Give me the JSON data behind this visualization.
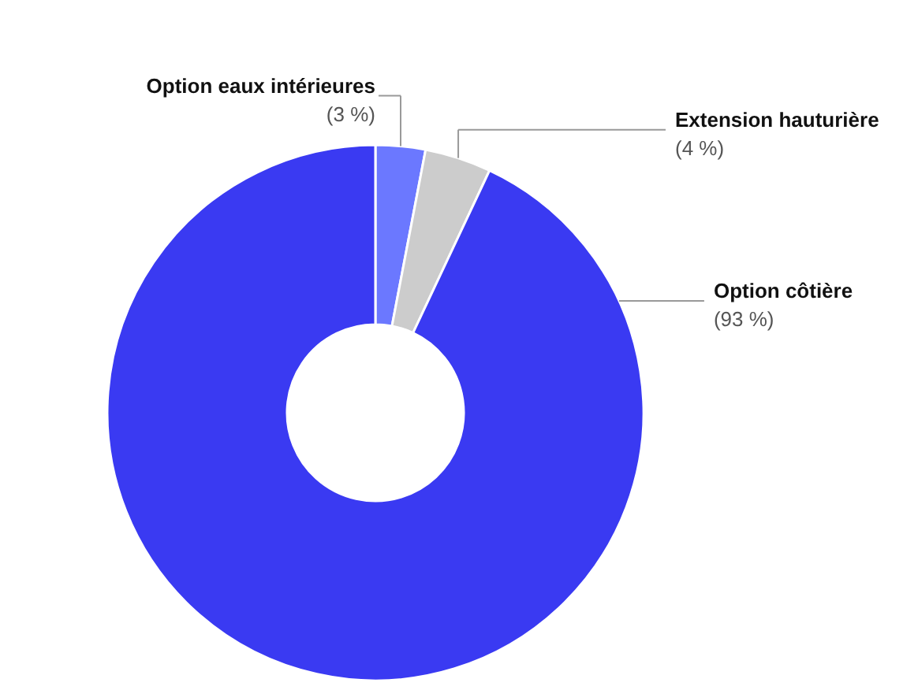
{
  "chart_data": {
    "type": "donut",
    "categories": [
      "Option eaux intérieures",
      "Extension hauturière",
      "Option côtière"
    ],
    "values": [
      3,
      4,
      93
    ],
    "colors": [
      "#6b78ff",
      "#cccccc",
      "#3a3af2"
    ],
    "value_labels": [
      "(3 %)",
      "(4 %)",
      "(93 %)"
    ]
  }
}
